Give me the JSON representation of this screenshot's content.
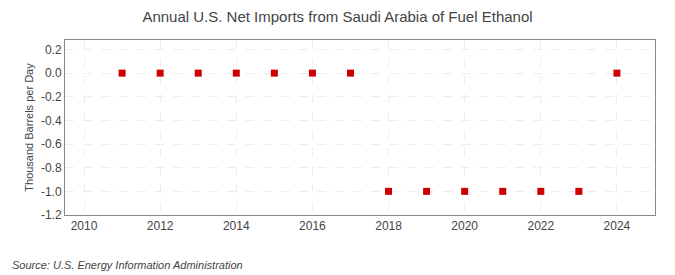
{
  "chart_data": {
    "type": "scatter",
    "title": "Annual U.S. Net Imports from Saudi Arabia of Fuel Ethanol",
    "ylabel": "Thousand Barrels per Day",
    "annotations": [
      "Source: U.S. Energy Information Administration"
    ],
    "x": [
      2011,
      2012,
      2013,
      2014,
      2015,
      2016,
      2017,
      2018,
      2019,
      2020,
      2021,
      2022,
      2023,
      2024
    ],
    "values": [
      0.0,
      0.0,
      0.0,
      0.0,
      0.0,
      0.0,
      0.0,
      -1.0,
      -1.0,
      -1.0,
      -1.0,
      -1.0,
      -1.0,
      0.0
    ],
    "color": "#cc0000",
    "marker": "square",
    "xlim": [
      2009.5,
      2025.0
    ],
    "xticks": [
      2010,
      2012,
      2014,
      2016,
      2018,
      2020,
      2022,
      2024
    ],
    "ylim": [
      -1.2,
      0.28
    ],
    "yticks": [
      0.2,
      {
        "value": 0.0,
        "label": "0.0"
      },
      -0.2,
      -0.4,
      -0.6,
      -0.8,
      {
        "value": -1.0,
        "label": "-1.0"
      },
      -1.2
    ],
    "grid": true
  }
}
